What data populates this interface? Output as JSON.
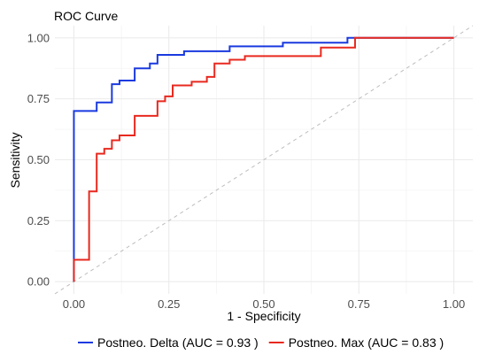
{
  "chart_data": {
    "type": "line",
    "title": "ROC Curve",
    "xlabel": "1 - Specificity",
    "ylabel": "Sensitivity",
    "xlim": [
      -0.05,
      1.05
    ],
    "ylim": [
      -0.05,
      1.05
    ],
    "x_ticks": [
      0,
      0.25,
      0.5,
      0.75,
      1
    ],
    "x_tick_labels": [
      "0.00",
      "0.25",
      "0.50",
      "0.75",
      "1.00"
    ],
    "y_ticks": [
      0,
      0.25,
      0.5,
      0.75,
      1
    ],
    "y_tick_labels": [
      "0.00",
      "0.25",
      "0.50",
      "0.75",
      "1.00"
    ],
    "grid": true,
    "legend_position": "bottom",
    "reference_line": {
      "x": [
        0,
        1
      ],
      "y": [
        0,
        1
      ],
      "style": "dashed",
      "color": "#bdbdbd"
    },
    "series": [
      {
        "name": "Postneo. Delta (AUC = 0.93 )",
        "color": "#1a3adf",
        "x": [
          0,
          0,
          0.06,
          0.06,
          0.1,
          0.1,
          0.12,
          0.12,
          0.16,
          0.16,
          0.2,
          0.2,
          0.22,
          0.22,
          0.29,
          0.29,
          0.41,
          0.41,
          0.55,
          0.55,
          0.72,
          0.72,
          1
        ],
        "y": [
          0,
          0.7,
          0.7,
          0.735,
          0.735,
          0.81,
          0.81,
          0.825,
          0.825,
          0.875,
          0.875,
          0.895,
          0.895,
          0.93,
          0.93,
          0.945,
          0.945,
          0.965,
          0.965,
          0.98,
          0.98,
          1.0,
          1.0
        ]
      },
      {
        "name": "Postneo. Max (AUC = 0.83 )",
        "color": "#e8291f",
        "x": [
          0,
          0,
          0.04,
          0.04,
          0.06,
          0.06,
          0.08,
          0.08,
          0.1,
          0.1,
          0.12,
          0.12,
          0.16,
          0.16,
          0.22,
          0.22,
          0.24,
          0.24,
          0.26,
          0.26,
          0.31,
          0.31,
          0.35,
          0.35,
          0.37,
          0.37,
          0.41,
          0.41,
          0.45,
          0.45,
          0.65,
          0.65,
          0.74,
          0.74,
          1
        ],
        "y": [
          0,
          0.09,
          0.09,
          0.37,
          0.37,
          0.525,
          0.525,
          0.545,
          0.545,
          0.58,
          0.58,
          0.6,
          0.6,
          0.68,
          0.68,
          0.74,
          0.74,
          0.76,
          0.76,
          0.805,
          0.805,
          0.82,
          0.82,
          0.84,
          0.84,
          0.895,
          0.895,
          0.91,
          0.91,
          0.925,
          0.925,
          0.96,
          0.96,
          1.0,
          1.0
        ]
      }
    ]
  }
}
